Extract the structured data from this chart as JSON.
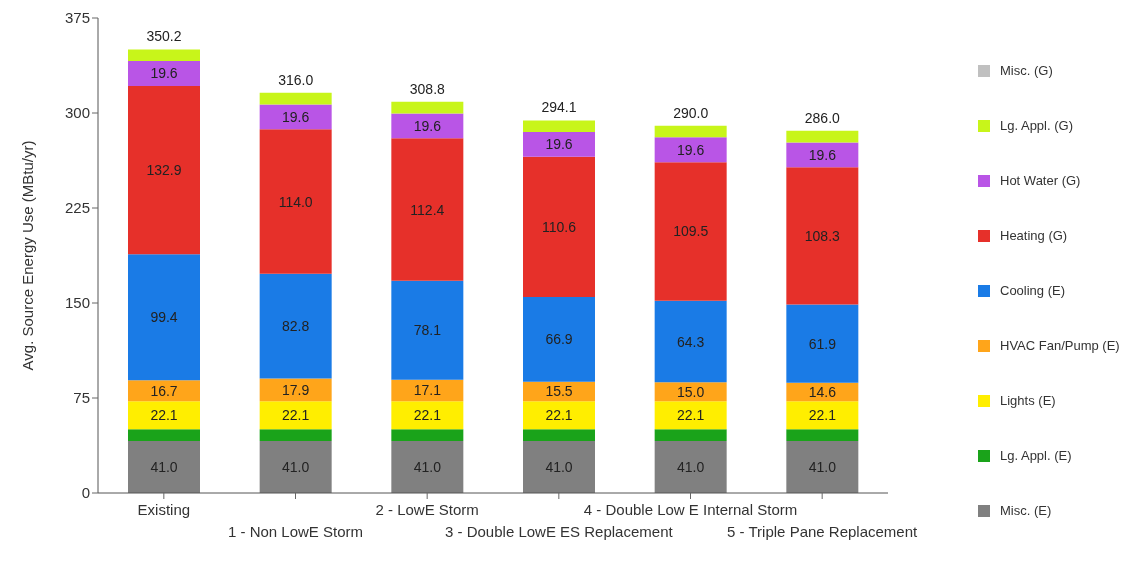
{
  "chart_data": {
    "type": "bar",
    "stacked": true,
    "ylabel": "Avg. Source Energy Use (MBtu/yr)",
    "categories": [
      "Existing",
      "1 - Non LowE Storm",
      "2 - LowE Storm",
      "3 - Double LowE ES Replacement",
      "4 - Double Low E Internal Storm",
      "5 - Triple Pane Replacement"
    ],
    "ylim": [
      0,
      375
    ],
    "yticks": [
      0,
      75,
      150,
      225,
      300,
      375
    ],
    "legend": "right",
    "series": [
      {
        "name": "Misc. (E)",
        "color": "#808080",
        "values": [
          41.0,
          41.0,
          41.0,
          41.0,
          41.0,
          41.0
        ],
        "value_labels": [
          "41.0",
          "41.0",
          "41.0",
          "41.0",
          "41.0",
          "41.0"
        ]
      },
      {
        "name": "Lg. Appl. (E)",
        "color": "#1aa31a",
        "values": [
          9.3,
          9.3,
          9.3,
          9.3,
          9.3,
          9.3
        ]
      },
      {
        "name": "Lights (E)",
        "color": "#ffee00",
        "values": [
          22.1,
          22.1,
          22.1,
          22.1,
          22.1,
          22.1
        ],
        "value_labels": [
          "22.1",
          "22.1",
          "22.1",
          "22.1",
          "22.1",
          "22.1"
        ]
      },
      {
        "name": "HVAC Fan/Pump (E)",
        "color": "#ffa51a",
        "values": [
          16.7,
          17.9,
          17.1,
          15.5,
          15.0,
          14.6
        ],
        "value_labels": [
          "16.7",
          "17.9",
          "17.1",
          "15.5",
          "15.0",
          "14.6"
        ]
      },
      {
        "name": "Cooling (E)",
        "color": "#1a7be6",
        "values": [
          99.4,
          82.8,
          78.1,
          66.9,
          64.3,
          61.9
        ],
        "value_labels": [
          "99.4",
          "82.8",
          "78.1",
          "66.9",
          "64.3",
          "61.9"
        ]
      },
      {
        "name": "Heating (G)",
        "color": "#e6302a",
        "values": [
          132.9,
          114.0,
          112.4,
          110.6,
          109.5,
          108.3
        ],
        "value_labels": [
          "132.9",
          "114.0",
          "112.4",
          "110.6",
          "109.5",
          "108.3"
        ]
      },
      {
        "name": "Hot Water (G)",
        "color": "#b955e6",
        "values": [
          19.6,
          19.6,
          19.6,
          19.6,
          19.6,
          19.6
        ],
        "value_labels": [
          "19.6",
          "19.6",
          "19.6",
          "19.6",
          "19.6",
          "19.6"
        ]
      },
      {
        "name": "Lg. Appl. (G)",
        "color": "#c8f51a",
        "values": [
          9.2,
          9.3,
          9.2,
          9.1,
          9.2,
          9.2
        ]
      },
      {
        "name": "Misc. (G)",
        "color": "#c0c0c0",
        "values": [
          0,
          0,
          0,
          0,
          0,
          0
        ]
      }
    ],
    "totals": [
      "350.2",
      "316.0",
      "308.8",
      "294.1",
      "290.0",
      "286.0"
    ]
  }
}
